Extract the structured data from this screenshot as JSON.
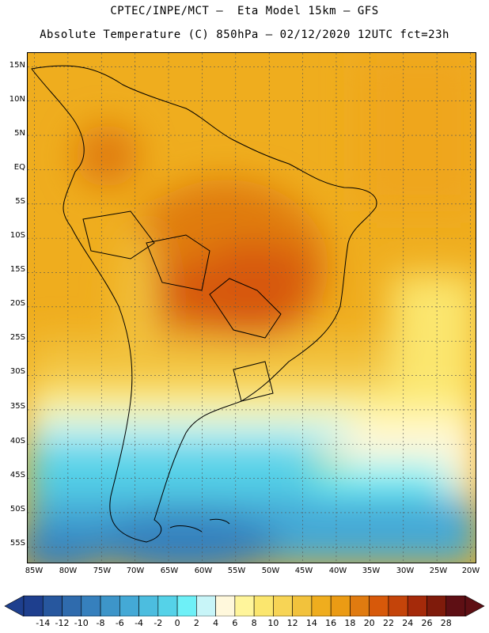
{
  "header": {
    "line1": "CPTEC/INPE/MCT –  Eta Model 15km – GFS",
    "line2": "Absolute Temperature (C) 850hPa – 02/12/2020 12UTC fct=23h"
  },
  "map": {
    "lat_labels": [
      "15N",
      "10N",
      "5N",
      "EQ",
      "5S",
      "10S",
      "15S",
      "20S",
      "25S",
      "30S",
      "35S",
      "40S",
      "45S",
      "50S",
      "55S"
    ],
    "lon_labels": [
      "85W",
      "80W",
      "75W",
      "70W",
      "65W",
      "60W",
      "55W",
      "50W",
      "45W",
      "40W",
      "35W",
      "30W",
      "25W",
      "20W"
    ],
    "extent": {
      "lon_min": -86,
      "lon_max": -19,
      "lat_min": -57.5,
      "lat_max": 17
    }
  },
  "legend": {
    "labels": [
      "-14",
      "-12",
      "-10",
      "-8",
      "-6",
      "-4",
      "-2",
      "0",
      "2",
      "4",
      "6",
      "8",
      "10",
      "12",
      "14",
      "16",
      "18",
      "20",
      "22",
      "24",
      "26",
      "28"
    ],
    "colors": [
      "#1e3f8e",
      "#27579e",
      "#2f6bad",
      "#3680bd",
      "#3d95c9",
      "#44a9d6",
      "#4cbddf",
      "#55d2e8",
      "#6ef0f7",
      "#c8f5f8",
      "#fff8dc",
      "#fff59b",
      "#fbe66e",
      "#f7d455",
      "#f2c23c",
      "#efad1e",
      "#eb9b14",
      "#e07b10",
      "#d7590a",
      "#c4440a",
      "#a52a0a",
      "#7f1b0b",
      "#5e0f14"
    ]
  }
}
